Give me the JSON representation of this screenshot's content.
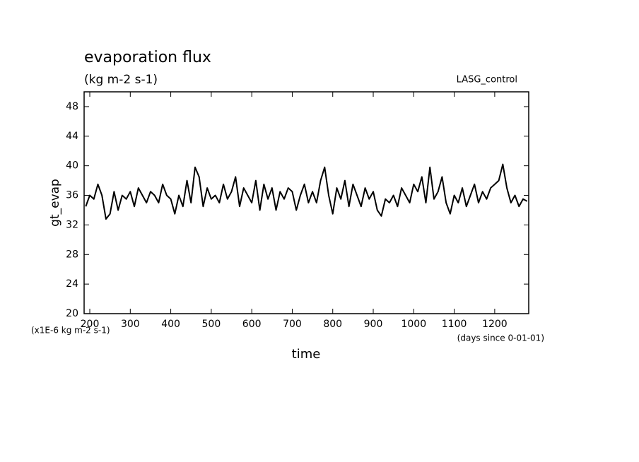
{
  "chart_data": {
    "type": "line",
    "title": "evaporation flux",
    "subtitle": "(kg m-2 s-1)",
    "annotation": "LASG_control",
    "y_label": "gt_evap",
    "y_units": "(x1E-6 kg m-2 s-1)",
    "x_label": "time",
    "x_units": "(days since 0-01-01)",
    "xlim": [
      186,
      1284
    ],
    "ylim": [
      20,
      50
    ],
    "xticks": [
      200,
      300,
      400,
      500,
      600,
      700,
      800,
      900,
      1000,
      1100,
      1200
    ],
    "yticks": [
      20,
      24,
      28,
      32,
      36,
      40,
      44,
      48
    ],
    "x": [
      190,
      200,
      210,
      220,
      230,
      240,
      250,
      260,
      270,
      280,
      290,
      300,
      310,
      320,
      330,
      340,
      350,
      360,
      370,
      380,
      390,
      400,
      410,
      420,
      430,
      440,
      450,
      460,
      470,
      480,
      490,
      500,
      510,
      520,
      530,
      540,
      550,
      560,
      570,
      580,
      590,
      600,
      610,
      620,
      630,
      640,
      650,
      660,
      670,
      680,
      690,
      700,
      710,
      720,
      730,
      740,
      750,
      760,
      770,
      780,
      790,
      800,
      810,
      820,
      830,
      840,
      850,
      860,
      870,
      880,
      890,
      900,
      910,
      920,
      930,
      940,
      950,
      960,
      970,
      980,
      990,
      1000,
      1010,
      1020,
      1030,
      1040,
      1050,
      1060,
      1070,
      1080,
      1090,
      1100,
      1110,
      1120,
      1130,
      1140,
      1150,
      1160,
      1170,
      1180,
      1190,
      1200,
      1210,
      1220,
      1230,
      1240,
      1250,
      1260,
      1270,
      1280
    ],
    "series": [
      {
        "name": "gt_evap",
        "color": "#000000",
        "values": [
          34.5,
          36,
          35.5,
          37.5,
          36,
          32.8,
          33.5,
          36.5,
          34,
          36,
          35.5,
          36.5,
          34.5,
          37,
          36,
          35,
          36.5,
          36,
          35,
          37.5,
          36,
          35.5,
          33.5,
          36,
          34.5,
          38,
          35,
          39.8,
          38.5,
          34.5,
          37,
          35.5,
          36,
          35,
          37.5,
          35.5,
          36.5,
          38.5,
          34.5,
          37,
          36,
          35,
          38,
          34,
          37.5,
          35.5,
          37,
          34,
          36.5,
          35.5,
          37,
          36.5,
          34,
          36,
          37.5,
          35,
          36.5,
          35,
          38,
          39.8,
          36,
          33.5,
          37,
          35.5,
          38,
          34.5,
          37.5,
          36,
          34.5,
          37,
          35.5,
          36.5,
          34,
          33.2,
          35.5,
          35,
          36,
          34.5,
          37,
          36,
          35,
          37.5,
          36.5,
          38.5,
          35,
          39.8,
          35.5,
          36.5,
          38.5,
          35,
          33.5,
          36,
          35,
          37,
          34.5,
          36,
          37.5,
          35,
          36.5,
          35.5,
          37,
          37.5,
          38,
          40.2,
          37,
          35,
          36,
          34.5,
          35.5,
          35.2
        ]
      }
    ]
  }
}
